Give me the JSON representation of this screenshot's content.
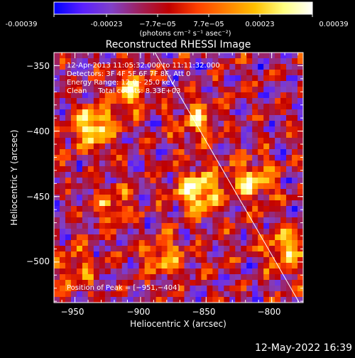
{
  "colorbar": {
    "ticks": [
      "-0.00039",
      "-0.00023",
      "−7.7e−05",
      "7.7e−05",
      "0.00023",
      "0.00039"
    ],
    "unit_label": "(photons cm⁻² s⁻¹ asec⁻²)",
    "stops": [
      "#0000ff",
      "#5a20ff",
      "#8040c8",
      "#a0205a",
      "#c00000",
      "#ff4000",
      "#ff8000",
      "#ffc000",
      "#ffff80",
      "#ffffff"
    ]
  },
  "plot": {
    "title": "Reconstructed RHESSI Image",
    "xlabel": "Heliocentric X (arcsec)",
    "ylabel": "Heliocentric Y (arcsec)",
    "x_ticks": [
      "−950",
      "−900",
      "−850",
      "−800"
    ],
    "y_ticks": [
      "−350",
      "−400",
      "−450",
      "−500"
    ],
    "x_tick_values": [
      -950,
      -900,
      -850,
      -800
    ],
    "y_tick_values": [
      -350,
      -400,
      -450,
      -500
    ],
    "xlim": [
      -966,
      -776
    ],
    "ylim": [
      -531,
      -340
    ],
    "limb_line": [
      [
        -889,
        -340
      ],
      [
        -779,
        -531
      ]
    ]
  },
  "annotations": {
    "time_range": "12-Apr-2013 11:05:32.000 to 11:11:32.000",
    "detectors": "Detectors: 3F 4F 5F 6F 7F 8F, Att 0",
    "energy_range": "Energy Range: 12.0 - 25.0 keV",
    "clean_counts": "Clean     Total counts: 8.33E+03",
    "peak_position": "Position of Peak = [−951,−404]"
  },
  "footer": {
    "timestamp": "12-May-2022 16:39"
  },
  "image": {
    "peaks": [
      {
        "x": -936,
        "y": -397,
        "intensity": 1.0
      },
      {
        "x": -856,
        "y": -447,
        "intensity": 1.0
      },
      {
        "x": -815,
        "y": -438,
        "intensity": 0.8
      },
      {
        "x": -790,
        "y": -490,
        "intensity": 0.8
      },
      {
        "x": -906,
        "y": -370,
        "intensity": 0.7
      },
      {
        "x": -858,
        "y": -392,
        "intensity": 0.6
      },
      {
        "x": -922,
        "y": -455,
        "intensity": 0.5
      },
      {
        "x": -882,
        "y": -497,
        "intensity": 0.6
      },
      {
        "x": -950,
        "y": -505,
        "intensity": 0.5
      }
    ]
  }
}
